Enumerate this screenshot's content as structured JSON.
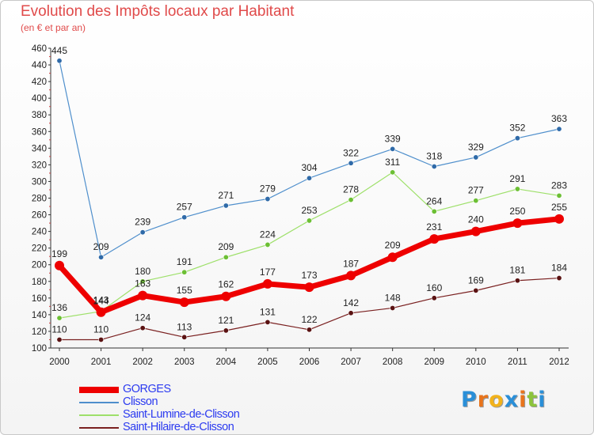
{
  "title": "Evolution des Impôts locaux par Habitant",
  "subtitle": "(en € et par an)",
  "logo": {
    "text": "Proxiti",
    "letters": [
      {
        "ch": "P",
        "color": "#2a8fd8"
      },
      {
        "ch": "r",
        "color": "#e8741c"
      },
      {
        "ch": "o",
        "color": "#f2b21b"
      },
      {
        "ch": "x",
        "color": "#2a8fd8"
      },
      {
        "ch": "i",
        "color": "#e8741c"
      },
      {
        "ch": "t",
        "color": "#8cc43c"
      },
      {
        "ch": "i",
        "color": "#2a8fd8"
      }
    ]
  },
  "chart_data": {
    "type": "line",
    "title": "Evolution des Impôts locaux par Habitant",
    "subtitle": "(en € et par an)",
    "x": [
      "2000",
      "2001",
      "2002",
      "2003",
      "2004",
      "2005",
      "2006",
      "2007",
      "2008",
      "2009",
      "2010",
      "2011",
      "2012"
    ],
    "ylim": [
      100,
      460
    ],
    "yticks": [
      100,
      120,
      140,
      160,
      180,
      200,
      220,
      240,
      260,
      280,
      300,
      320,
      340,
      360,
      380,
      400,
      420,
      440,
      460
    ],
    "grid": false,
    "legend_position": "bottom-left",
    "series": [
      {
        "name": "Clisson",
        "color": "#4f8fcc",
        "marker": "#2f6aa8",
        "width": 1.2,
        "values": [
          445,
          209,
          239,
          257,
          271,
          279,
          304,
          322,
          339,
          318,
          329,
          352,
          363
        ]
      },
      {
        "name": "Saint-Lumine-de-Clisson",
        "color": "#9ee06a",
        "marker": "#6cbf34",
        "width": 1.2,
        "values": [
          136,
          144,
          180,
          191,
          209,
          224,
          253,
          278,
          311,
          264,
          277,
          291,
          283
        ]
      },
      {
        "name": "Saint-Hilaire-de-Clisson",
        "color": "#7a2020",
        "marker": "#5a1212",
        "width": 1.2,
        "values": [
          110,
          110,
          124,
          113,
          121,
          131,
          122,
          142,
          148,
          160,
          169,
          181,
          184
        ]
      },
      {
        "name": "GORGES",
        "color": "#ee0000",
        "marker": "#ee0000",
        "width": 7,
        "values": [
          199,
          143,
          163,
          155,
          162,
          177,
          173,
          187,
          209,
          231,
          240,
          250,
          255
        ]
      }
    ],
    "legend_order": [
      "GORGES",
      "Clisson",
      "Saint-Lumine-de-Clisson",
      "Saint-Hilaire-de-Clisson"
    ]
  }
}
